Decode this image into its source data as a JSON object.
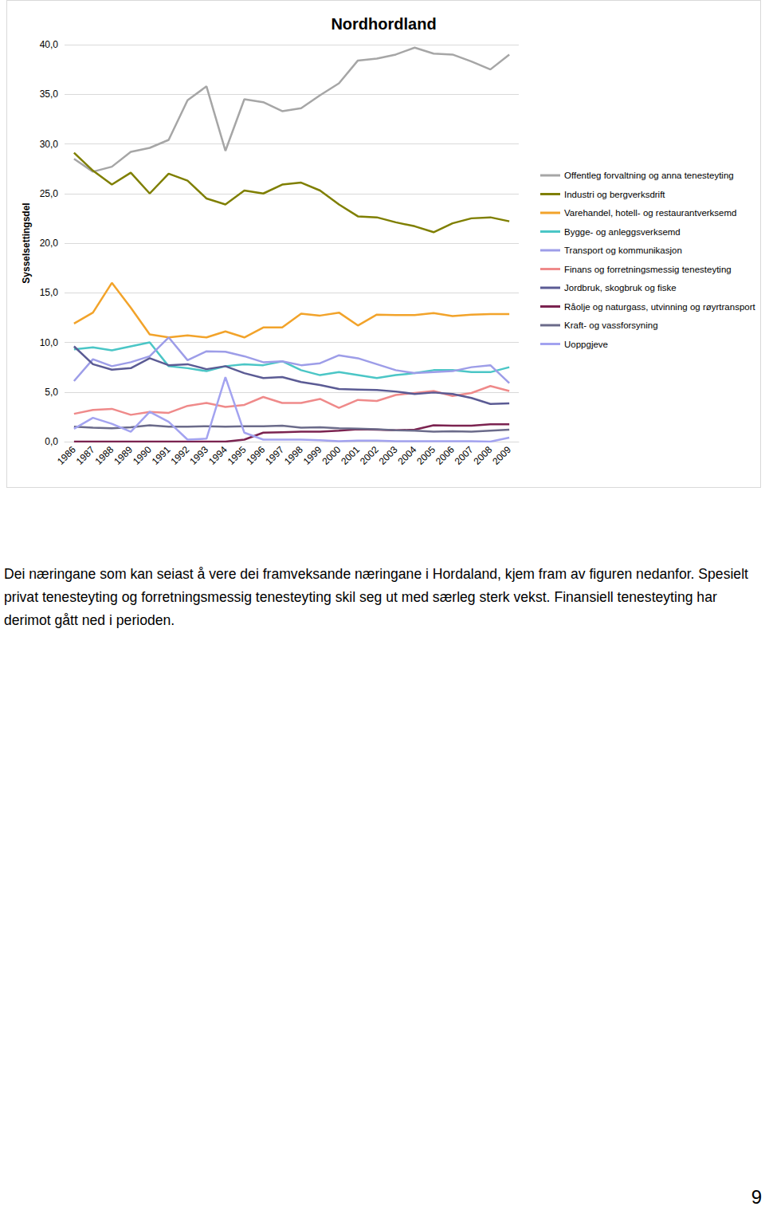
{
  "chart_data": {
    "type": "line",
    "title": "Nordhordland",
    "y_label": "Sysselsettingsdel",
    "categories": [
      "1986",
      "1987",
      "1988",
      "1989",
      "1990",
      "1991",
      "1992",
      "1993",
      "1994",
      "1995",
      "1996",
      "1997",
      "1998",
      "1999",
      "2000",
      "2001",
      "2002",
      "2003",
      "2004",
      "2005",
      "2006",
      "2007",
      "2008",
      "2009"
    ],
    "series": [
      {
        "name": "Offentleg forvaltning og anna tenesteyting",
        "color": "#a6a6a6",
        "values": [
          28.5,
          27.2,
          27.7,
          29.2,
          29.6,
          30.4,
          34.4,
          35.8,
          29.3,
          34.5,
          34.2,
          33.3,
          33.6,
          34.9,
          36.1,
          38.4,
          38.6,
          39.0,
          39.7,
          39.1,
          39.0,
          38.3,
          37.5,
          39.0
        ]
      },
      {
        "name": "Industri og bergverksdrift",
        "color": "#7f7f00",
        "values": [
          29.1,
          27.3,
          25.9,
          27.1,
          25.0,
          27.0,
          26.3,
          24.5,
          23.9,
          25.3,
          25.0,
          25.9,
          26.1,
          25.3,
          23.9,
          22.7,
          22.6,
          22.1,
          21.7,
          21.1,
          22.0,
          22.5,
          22.6,
          22.2
        ]
      },
      {
        "name": "Varehandel, hotell- og restaurantverksemd",
        "color": "#f2a32a",
        "values": [
          11.9,
          13.0,
          16.0,
          13.5,
          10.8,
          10.5,
          10.7,
          10.5,
          11.1,
          10.5,
          11.5,
          11.5,
          12.9,
          12.7,
          13.0,
          11.7,
          12.8,
          12.75,
          12.75,
          12.95,
          12.65,
          12.8,
          12.85,
          12.85
        ]
      },
      {
        "name": "Bygge- og anleggsverksemd",
        "color": "#4bc6c6",
        "values": [
          9.3,
          9.5,
          9.2,
          9.6,
          10.0,
          7.6,
          7.4,
          7.1,
          7.6,
          7.8,
          7.7,
          8.1,
          7.2,
          6.7,
          7.0,
          6.7,
          6.4,
          6.7,
          6.9,
          7.2,
          7.2,
          7.0,
          7.0,
          7.5
        ]
      },
      {
        "name": "Transport og kommunikasjon",
        "color": "#9d9de8",
        "values": [
          6.1,
          8.3,
          7.6,
          8.0,
          8.6,
          10.5,
          8.2,
          9.1,
          9.05,
          8.6,
          8.0,
          8.1,
          7.7,
          7.9,
          8.7,
          8.4,
          7.8,
          7.2,
          6.9,
          7.0,
          7.1,
          7.5,
          7.7,
          5.9
        ]
      },
      {
        "name": "Finans og forretningsmessig tenesteyting",
        "color": "#ef8a8a",
        "values": [
          2.8,
          3.2,
          3.3,
          2.7,
          3.0,
          2.9,
          3.6,
          3.9,
          3.5,
          3.7,
          4.5,
          3.9,
          3.9,
          4.3,
          3.4,
          4.2,
          4.1,
          4.7,
          4.9,
          5.1,
          4.6,
          4.9,
          5.6,
          5.1
        ]
      },
      {
        "name": "Jordbruk, skogbruk og fiske",
        "color": "#5b5b94",
        "values": [
          9.6,
          7.8,
          7.25,
          7.4,
          8.4,
          7.7,
          7.8,
          7.3,
          7.6,
          6.9,
          6.4,
          6.5,
          6.0,
          5.7,
          5.3,
          5.25,
          5.2,
          5.05,
          4.8,
          4.95,
          4.8,
          4.4,
          3.8,
          3.85
        ]
      },
      {
        "name": "Råolje og naturgass, utvinning og røyrtransport",
        "color": "#7b2350",
        "values": [
          0.0,
          0.0,
          0.0,
          0.0,
          0.0,
          0.0,
          0.0,
          0.0,
          0.0,
          0.2,
          0.9,
          0.95,
          1.0,
          1.0,
          1.1,
          1.25,
          1.2,
          1.15,
          1.2,
          1.65,
          1.6,
          1.6,
          1.75,
          1.75
        ]
      },
      {
        "name": "Kraft- og vassforsyning",
        "color": "#6b6b8a",
        "values": [
          1.5,
          1.4,
          1.35,
          1.45,
          1.65,
          1.5,
          1.5,
          1.55,
          1.5,
          1.55,
          1.55,
          1.6,
          1.4,
          1.45,
          1.35,
          1.3,
          1.25,
          1.15,
          1.1,
          1.0,
          1.05,
          1.0,
          1.1,
          1.2
        ]
      },
      {
        "name": "Uoppgjeve",
        "color": "#a3a3f0",
        "values": [
          1.3,
          2.4,
          1.8,
          1.0,
          3.0,
          2.0,
          0.2,
          0.3,
          6.5,
          0.9,
          0.2,
          0.2,
          0.2,
          0.15,
          0.05,
          0.1,
          0.1,
          0.05,
          0.05,
          0.05,
          0.05,
          0.05,
          0.0,
          0.4
        ]
      }
    ],
    "ylim": [
      0,
      40
    ],
    "yticks": [
      {
        "value": 0,
        "label": "0,0"
      },
      {
        "value": 5,
        "label": "5,0"
      },
      {
        "value": 10,
        "label": "10,0"
      },
      {
        "value": 15,
        "label": "15,0"
      },
      {
        "value": 20,
        "label": "20,0"
      },
      {
        "value": 25,
        "label": "25,0"
      },
      {
        "value": 30,
        "label": "30,0"
      },
      {
        "value": 35,
        "label": "35,0"
      },
      {
        "value": 40,
        "label": "40,0"
      }
    ],
    "grid": true,
    "legend": "right"
  },
  "paragraph": "Dei næringane som kan seiast å vere dei framveksande næringane i Hordaland, kjem fram av figuren nedanfor. Spesielt privat tenesteyting og forretningsmessig tenesteyting skil seg ut med særleg sterk vekst. Finansiell tenesteyting har derimot gått ned i perioden.",
  "page_number": 9
}
